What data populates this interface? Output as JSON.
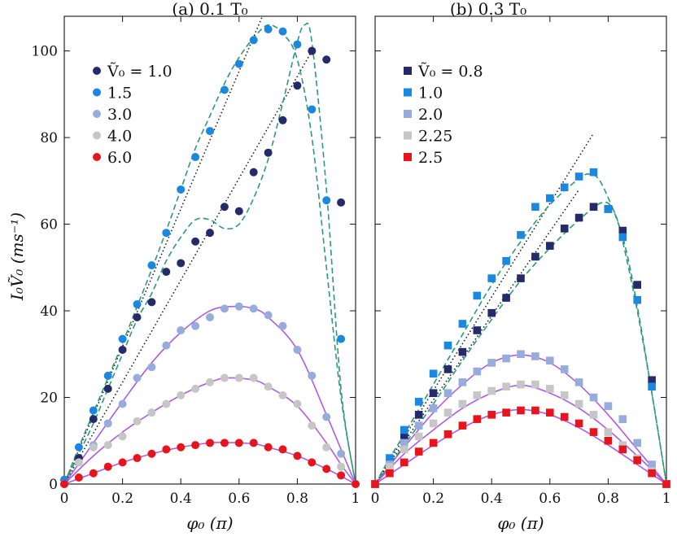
{
  "chart_data": [
    {
      "type": "scatter",
      "title": "(a) 0.1 T₀",
      "xlabel": "φ₀ (π)",
      "ylabel": "I₀Ṽ₀ (ms⁻¹)",
      "xlim": [
        0,
        1
      ],
      "ylim": [
        0,
        108
      ],
      "xticks": [
        "0",
        "0.2",
        "0.4",
        "0.6",
        "0.8",
        "1"
      ],
      "yticks": [
        "0",
        "20",
        "40",
        "60",
        "80",
        "100"
      ],
      "marker": "circle",
      "legend_position": "top-left",
      "series": [
        {
          "name": "Ṽ₀ = 1.0",
          "color": "#252a6b",
          "x": [
            0,
            0.05,
            0.1,
            0.15,
            0.2,
            0.25,
            0.3,
            0.35,
            0.4,
            0.45,
            0.5,
            0.55,
            0.6,
            0.65,
            0.7,
            0.75,
            0.8,
            0.85,
            0.9,
            0.95
          ],
          "y": [
            0,
            6,
            15,
            22,
            31,
            38.5,
            42,
            49,
            51,
            56,
            58,
            64,
            63,
            72,
            76.5,
            84,
            92,
            100,
            98,
            65
          ]
        },
        {
          "name": "1.5",
          "color": "#1a87e0",
          "x": [
            0,
            0.05,
            0.1,
            0.15,
            0.2,
            0.25,
            0.3,
            0.35,
            0.4,
            0.45,
            0.5,
            0.55,
            0.6,
            0.65,
            0.7,
            0.75,
            0.8,
            0.85,
            0.9,
            0.95
          ],
          "y": [
            1,
            8.5,
            17,
            25,
            33.5,
            41.5,
            50.5,
            58,
            68,
            75.5,
            81.5,
            91,
            97,
            102.5,
            105,
            104.5,
            101.5,
            86.5,
            65.5,
            33.5
          ]
        },
        {
          "name": "3.0",
          "color": "#96acdc",
          "x": [
            0,
            0.05,
            0.1,
            0.15,
            0.2,
            0.25,
            0.3,
            0.35,
            0.4,
            0.45,
            0.5,
            0.55,
            0.6,
            0.65,
            0.7,
            0.75,
            0.8,
            0.85,
            0.9,
            0.95,
            1
          ],
          "y": [
            0,
            5,
            9,
            14,
            18.5,
            24.5,
            27,
            32,
            35.5,
            36.5,
            38.5,
            40.5,
            41,
            40.5,
            39,
            36.5,
            31,
            25,
            15.5,
            7,
            0
          ]
        },
        {
          "name": "4.0",
          "color": "#c6c6c6",
          "x": [
            0,
            0.05,
            0.1,
            0.15,
            0.2,
            0.25,
            0.3,
            0.35,
            0.4,
            0.45,
            0.5,
            0.55,
            0.6,
            0.65,
            0.7,
            0.75,
            0.8,
            0.85,
            0.9,
            0.95,
            1
          ],
          "y": [
            0,
            5,
            8.5,
            9,
            11,
            14.5,
            16.5,
            18.5,
            20.5,
            22,
            23.5,
            24.5,
            24.5,
            24.5,
            22.5,
            20.5,
            18.5,
            13.5,
            8.5,
            4,
            0
          ]
        },
        {
          "name": "6.0",
          "color": "#e8141c",
          "x": [
            0,
            0.05,
            0.1,
            0.15,
            0.2,
            0.25,
            0.3,
            0.35,
            0.4,
            0.45,
            0.5,
            0.55,
            0.6,
            0.65,
            0.7,
            0.75,
            0.8,
            0.85,
            0.9,
            0.95,
            1
          ],
          "y": [
            0,
            1.5,
            2.5,
            4,
            5,
            6,
            7,
            8,
            8.5,
            9,
            9.5,
            9.5,
            9.5,
            9.5,
            8.5,
            8,
            6.5,
            5,
            3.5,
            2,
            0
          ]
        }
      ],
      "fits": {
        "dashed_green": [
          {
            "x": [
              0,
              0.05,
              0.1,
              0.15,
              0.2,
              0.25,
              0.3,
              0.35,
              0.4,
              0.45,
              0.5,
              0.55,
              0.6,
              0.65,
              0.7,
              0.75,
              0.8,
              0.85,
              0.9,
              0.95,
              1
            ],
            "y": [
              0,
              8.5,
              16.5,
              24.5,
              32.5,
              41,
              49.5,
              58.5,
              68,
              77.5,
              85,
              92.5,
              98.5,
              103,
              106,
              104,
              98,
              80,
              50,
              20,
              0
            ]
          },
          {
            "x": [
              0,
              0.05,
              0.1,
              0.15,
              0.2,
              0.25,
              0.3,
              0.35,
              0.4,
              0.45,
              0.5,
              0.55,
              0.6,
              0.65,
              0.7,
              0.75,
              0.8,
              0.825,
              0.85,
              0.9,
              0.95,
              1
            ],
            "y": [
              0,
              7,
              14,
              22,
              30,
              38,
              44,
              51.5,
              57,
              61,
              61,
              59,
              60,
              66,
              75,
              88,
              102,
              106,
              102,
              68,
              22,
              0
            ]
          }
        ],
        "solid_purple": [
          {
            "x": [
              0,
              0.1,
              0.2,
              0.3,
              0.4,
              0.5,
              0.58,
              0.65,
              0.7,
              0.8,
              0.9,
              0.95,
              1
            ],
            "y": [
              0,
              9.5,
              19,
              28,
              35,
              40,
              41,
              40.5,
              38.5,
              31,
              16,
              8,
              0
            ]
          },
          {
            "x": [
              0,
              0.1,
              0.2,
              0.3,
              0.4,
              0.5,
              0.56,
              0.65,
              0.7,
              0.8,
              0.9,
              0.95,
              1
            ],
            "y": [
              0,
              6.5,
              12,
              16.5,
              20.5,
              23.5,
              24.5,
              24,
              22.5,
              18,
              9.5,
              4.5,
              0
            ]
          },
          {
            "x": [
              0,
              0.1,
              0.2,
              0.3,
              0.4,
              0.5,
              0.56,
              0.65,
              0.7,
              0.8,
              0.9,
              0.95,
              1
            ],
            "y": [
              0,
              2.5,
              5,
              7,
              8.5,
              9.5,
              9.6,
              9.3,
              8.5,
              6.5,
              3.5,
              1.8,
              0
            ]
          }
        ],
        "dotted_black": [
          {
            "x": [
              0,
              0.68
            ],
            "y": [
              0,
              108
            ]
          },
          {
            "x": [
              0,
              0.85
            ],
            "y": [
              0,
              100
            ]
          }
        ]
      }
    },
    {
      "type": "scatter",
      "title": "(b) 0.3 T₀",
      "xlabel": "φ₀ (π)",
      "xlim": [
        0,
        1
      ],
      "ylim": [
        0,
        108
      ],
      "xticks": [
        "0",
        "0.2",
        "0.4",
        "0.6",
        "0.8",
        "1"
      ],
      "marker": "square",
      "legend_position": "top-left",
      "series": [
        {
          "name": "Ṽ₀ = 0.8",
          "color": "#252a6b",
          "x": [
            0,
            0.05,
            0.1,
            0.15,
            0.2,
            0.25,
            0.3,
            0.35,
            0.4,
            0.45,
            0.5,
            0.55,
            0.6,
            0.65,
            0.7,
            0.75,
            0.8,
            0.85,
            0.9,
            0.95,
            1
          ],
          "y": [
            0,
            5,
            11,
            16,
            21,
            26.5,
            30.5,
            35.5,
            39.5,
            43,
            47.5,
            52.5,
            55,
            59,
            61.5,
            64,
            63.5,
            58.5,
            46,
            24,
            0
          ]
        },
        {
          "name": "1.0",
          "color": "#1a87e0",
          "x": [
            0,
            0.05,
            0.1,
            0.15,
            0.2,
            0.25,
            0.3,
            0.35,
            0.4,
            0.45,
            0.5,
            0.55,
            0.6,
            0.65,
            0.7,
            0.75,
            0.8,
            0.85,
            0.9,
            0.95,
            1
          ],
          "y": [
            0,
            6,
            12.5,
            19,
            25.5,
            32,
            37,
            43.5,
            47.5,
            51.5,
            57.5,
            64,
            66,
            68.5,
            71,
            72,
            63.5,
            57,
            42.5,
            22.5,
            0
          ]
        },
        {
          "name": "2.0",
          "color": "#96acdc",
          "x": [
            0,
            0.05,
            0.1,
            0.15,
            0.2,
            0.25,
            0.3,
            0.35,
            0.4,
            0.45,
            0.5,
            0.55,
            0.6,
            0.65,
            0.7,
            0.75,
            0.8,
            0.85,
            0.9,
            0.95,
            1
          ],
          "y": [
            0,
            4.5,
            9.5,
            13.5,
            17.5,
            21,
            23.5,
            26,
            28,
            29,
            30,
            29.5,
            28.5,
            26.5,
            23.5,
            20,
            18,
            15,
            9.5,
            4.5,
            0
          ]
        },
        {
          "name": "2.25",
          "color": "#c6c6c6",
          "x": [
            0,
            0.05,
            0.1,
            0.15,
            0.2,
            0.25,
            0.3,
            0.35,
            0.4,
            0.45,
            0.5,
            0.55,
            0.6,
            0.65,
            0.7,
            0.75,
            0.8,
            0.85,
            0.9,
            0.95,
            1
          ],
          "y": [
            0,
            4,
            8,
            11,
            14,
            16.5,
            18.5,
            20.5,
            21.5,
            22.5,
            23,
            23,
            22,
            20.5,
            18.5,
            16,
            12,
            9,
            6,
            3,
            0
          ]
        },
        {
          "name": "2.5",
          "color": "#e8141c",
          "x": [
            0,
            0.05,
            0.1,
            0.15,
            0.2,
            0.25,
            0.3,
            0.35,
            0.4,
            0.45,
            0.5,
            0.55,
            0.6,
            0.65,
            0.7,
            0.75,
            0.8,
            0.85,
            0.9,
            0.95,
            1
          ],
          "y": [
            0,
            2.5,
            5,
            7.5,
            9.5,
            11.5,
            13.5,
            15,
            16,
            16.5,
            17,
            17,
            16.5,
            15.5,
            14,
            12,
            10,
            8,
            5.5,
            2.5,
            0
          ]
        }
      ],
      "fits": {
        "dashed_green": [
          {
            "x": [
              0,
              0.05,
              0.1,
              0.2,
              0.3,
              0.4,
              0.5,
              0.6,
              0.7,
              0.74,
              0.78,
              0.85,
              0.9,
              0.95,
              1
            ],
            "y": [
              0,
              6,
              11.5,
              23,
              34.5,
              46,
              56,
              64.5,
              70.5,
              71.5,
              69,
              57,
              41,
              21,
              0
            ]
          },
          {
            "x": [
              0,
              0.05,
              0.1,
              0.2,
              0.3,
              0.4,
              0.5,
              0.6,
              0.7,
              0.78,
              0.82,
              0.85,
              0.9,
              0.95,
              1
            ],
            "y": [
              0,
              4.5,
              9,
              18.5,
              28.5,
              38,
              47,
              54.5,
              61,
              65,
              63,
              56,
              40,
              21,
              0
            ]
          }
        ],
        "solid_purple": [
          {
            "x": [
              0,
              0.1,
              0.2,
              0.3,
              0.4,
              0.5,
              0.6,
              0.7,
              0.8,
              0.9,
              1
            ],
            "y": [
              0,
              8.5,
              16.5,
              23,
              28,
              29.8,
              28,
              23,
              16,
              8,
              0
            ]
          },
          {
            "x": [
              0,
              0.1,
              0.2,
              0.3,
              0.4,
              0.5,
              0.6,
              0.7,
              0.8,
              0.9,
              1
            ],
            "y": [
              0,
              7,
              12.5,
              17.5,
              21,
              22.8,
              21,
              17.5,
              12.5,
              6.5,
              0
            ]
          },
          {
            "x": [
              0,
              0.1,
              0.2,
              0.3,
              0.4,
              0.5,
              0.6,
              0.7,
              0.8,
              0.9,
              1
            ],
            "y": [
              0,
              4.5,
              9,
              13,
              16,
              17.2,
              16,
              13,
              9,
              4.5,
              0
            ]
          }
        ],
        "dotted_black": [
          {
            "x": [
              0,
              0.75
            ],
            "y": [
              0,
              81
            ]
          },
          {
            "x": [
              0,
              0.7
            ],
            "y": [
              0,
              68
            ]
          }
        ]
      }
    }
  ],
  "colors": {
    "fit_dashed": "#2a9b76",
    "fit_solid": "#b05ae6",
    "reference_dotted": "#111111"
  }
}
